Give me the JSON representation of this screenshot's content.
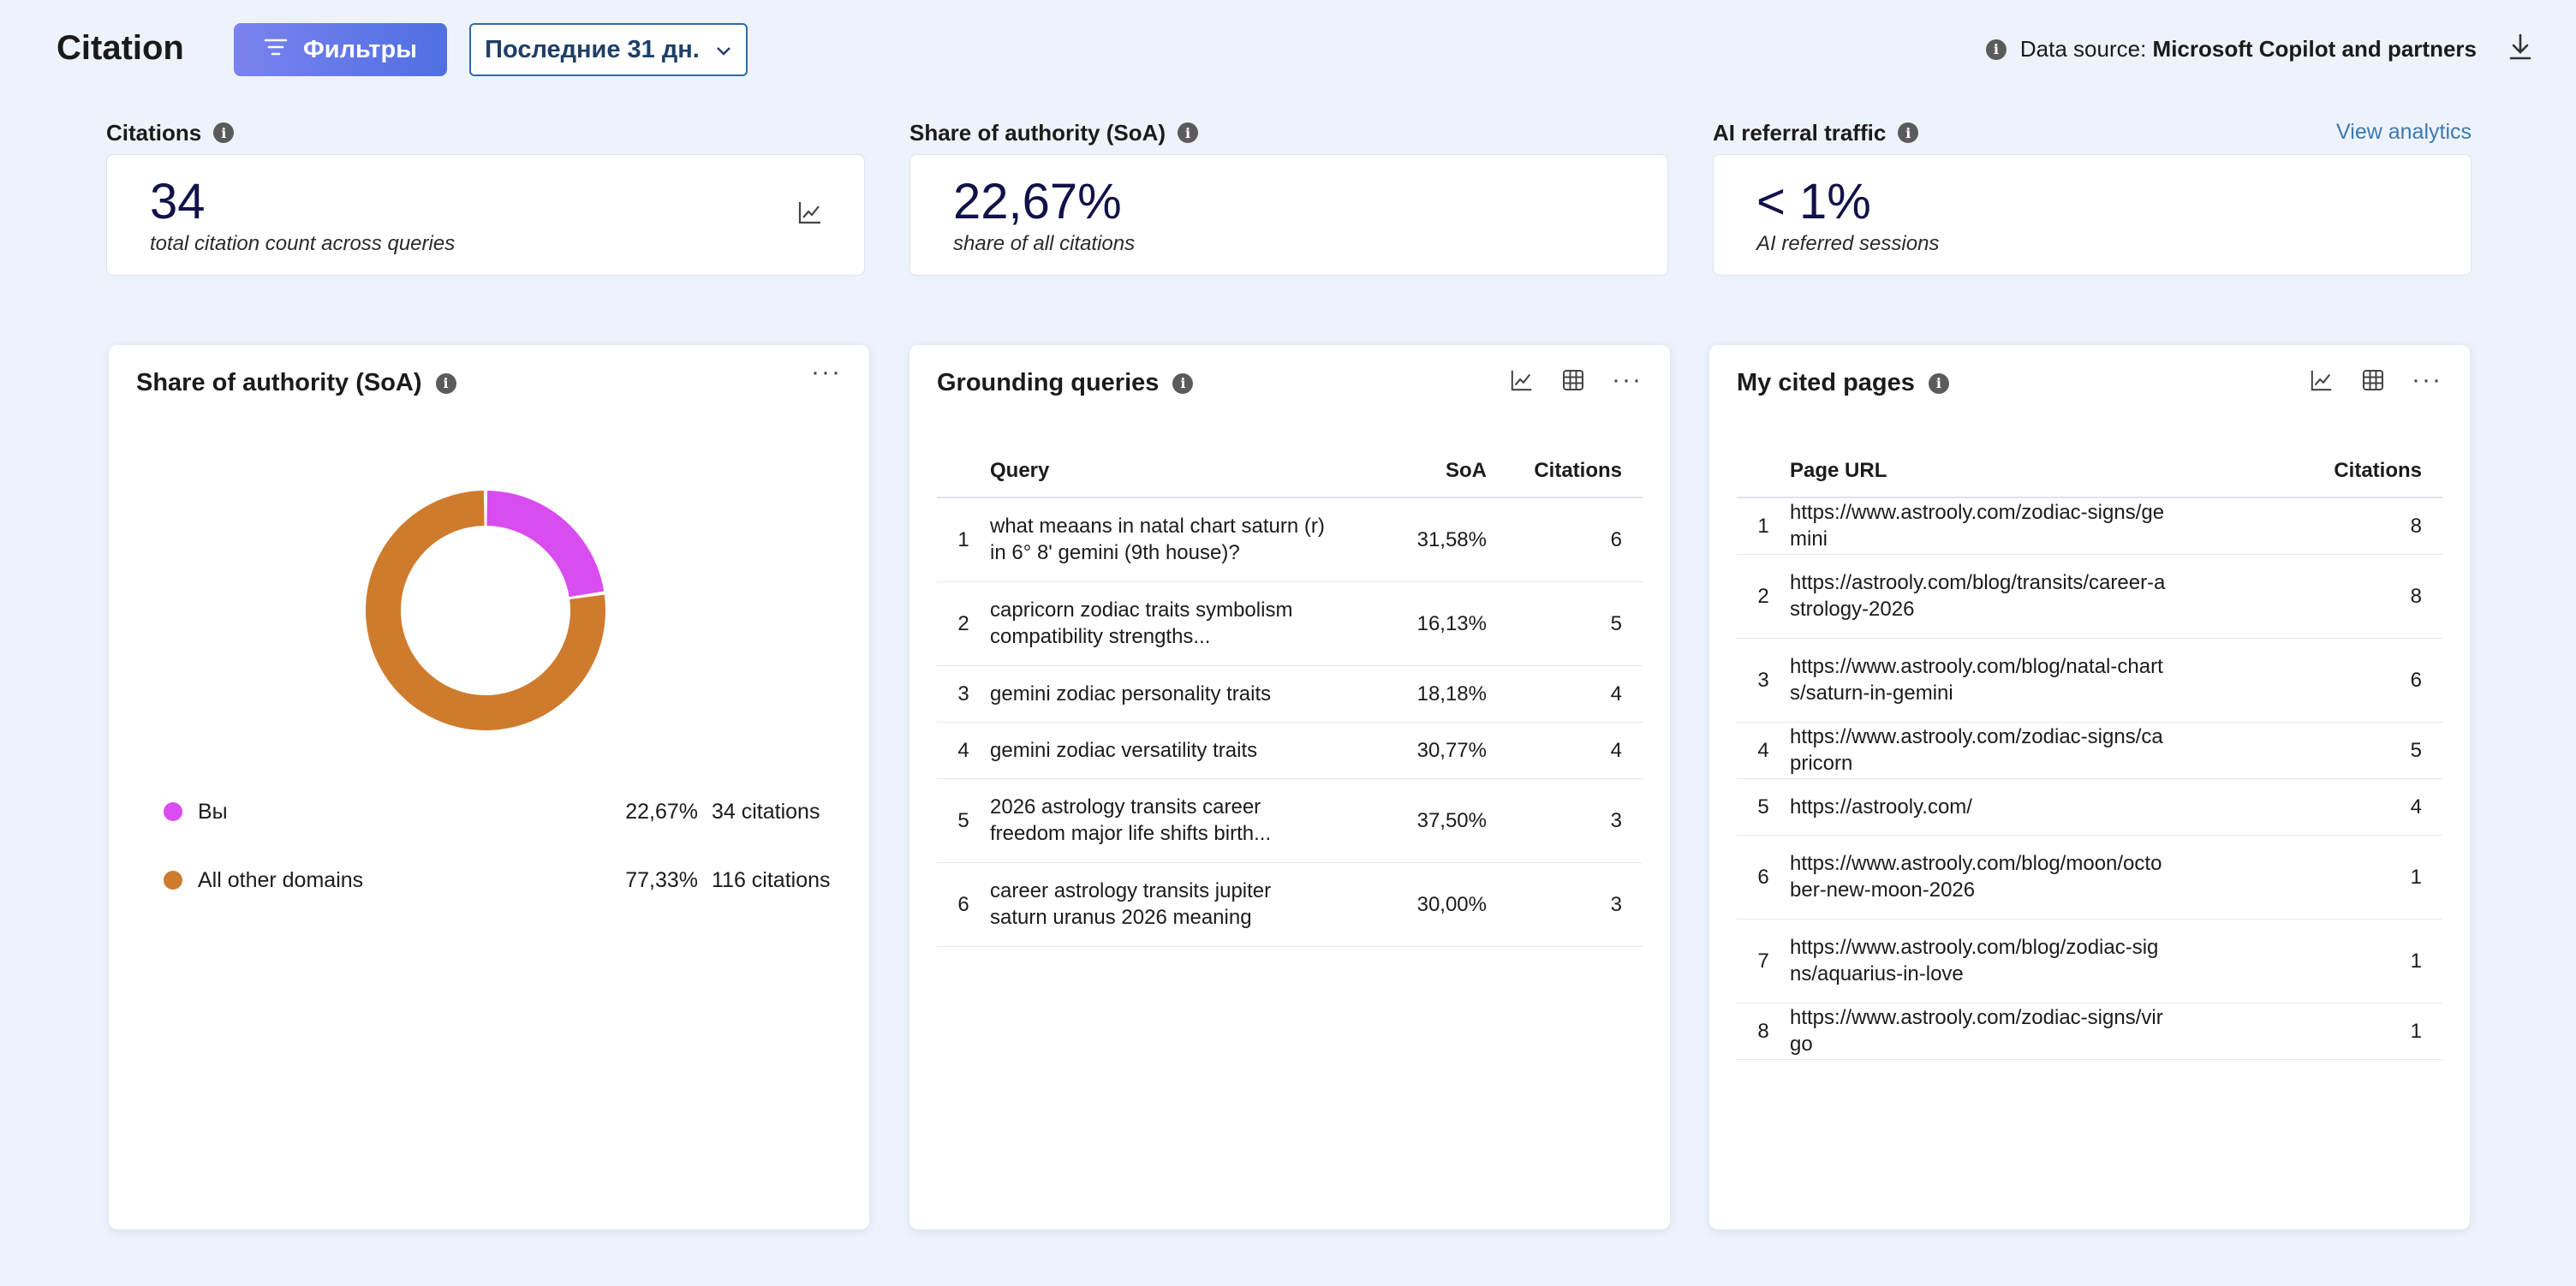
{
  "app": {
    "title": "Citation"
  },
  "header": {
    "filters_label": "Фильтры",
    "date_label": "Последние 31 дн.",
    "datasource_prefix": "Data source:",
    "datasource_value": "Microsoft Copilot and partners"
  },
  "kpis": {
    "citations": {
      "label": "Citations",
      "value": "34",
      "sub": "total citation count across queries"
    },
    "soa": {
      "label": "Share of authority (SoA)",
      "value": "22,67%",
      "sub": "share of all citations"
    },
    "referral": {
      "label": "AI referral traffic",
      "value": "< 1%",
      "sub": "AI referred sessions",
      "link": "View analytics"
    }
  },
  "soa_panel": {
    "title": "Share of authority (SoA)",
    "legend": [
      {
        "name": "Вы",
        "pct": "22,67%",
        "citations": "34 citations",
        "color": "#d94cf0"
      },
      {
        "name": "All other domains",
        "pct": "77,33%",
        "citations": "116 citations",
        "color": "#cf7b2e"
      }
    ]
  },
  "chart_data": {
    "type": "pie",
    "variant": "donut",
    "categories": [
      "Вы",
      "All other domains"
    ],
    "values": [
      22.67,
      77.33
    ],
    "colors": [
      "#d94cf0",
      "#cf7b2e"
    ]
  },
  "queries_panel": {
    "title": "Grounding queries",
    "columns": {
      "query": "Query",
      "soa": "SoA",
      "citations": "Citations"
    },
    "rows": [
      {
        "n": "1",
        "query": "what meaans in natal chart saturn (r) in 6° 8' gemini (9th house)?",
        "soa": "31,58%",
        "citations": "6"
      },
      {
        "n": "2",
        "query": "capricorn zodiac traits symbolism compatibility strengths...",
        "soa": "16,13%",
        "citations": "5"
      },
      {
        "n": "3",
        "query": "gemini zodiac personality traits",
        "soa": "18,18%",
        "citations": "4"
      },
      {
        "n": "4",
        "query": "gemini zodiac versatility traits",
        "soa": "30,77%",
        "citations": "4"
      },
      {
        "n": "5",
        "query": "2026 astrology transits career freedom major life shifts birth...",
        "soa": "37,50%",
        "citations": "3"
      },
      {
        "n": "6",
        "query": "career astrology transits jupiter saturn uranus 2026 meaning",
        "soa": "30,00%",
        "citations": "3"
      }
    ]
  },
  "pages_panel": {
    "title": "My cited pages",
    "columns": {
      "url": "Page URL",
      "citations": "Citations"
    },
    "rows": [
      {
        "n": "1",
        "url": "https://www.astrooly.com/zodiac-signs/gemini",
        "citations": "8"
      },
      {
        "n": "2",
        "url": "https://astrooly.com/blog/transits/career-astrology-2026",
        "citations": "8"
      },
      {
        "n": "3",
        "url": "https://www.astrooly.com/blog/natal-charts/saturn-in-gemini",
        "citations": "6"
      },
      {
        "n": "4",
        "url": "https://www.astrooly.com/zodiac-signs/capricorn",
        "citations": "5"
      },
      {
        "n": "5",
        "url": "https://astrooly.com/",
        "citations": "4"
      },
      {
        "n": "6",
        "url": "https://www.astrooly.com/blog/moon/october-new-moon-2026",
        "citations": "1"
      },
      {
        "n": "7",
        "url": "https://www.astrooly.com/blog/zodiac-signs/aquarius-in-love",
        "citations": "1"
      },
      {
        "n": "8",
        "url": "https://www.astrooly.com/zodiac-signs/virgo",
        "citations": "1"
      }
    ]
  }
}
